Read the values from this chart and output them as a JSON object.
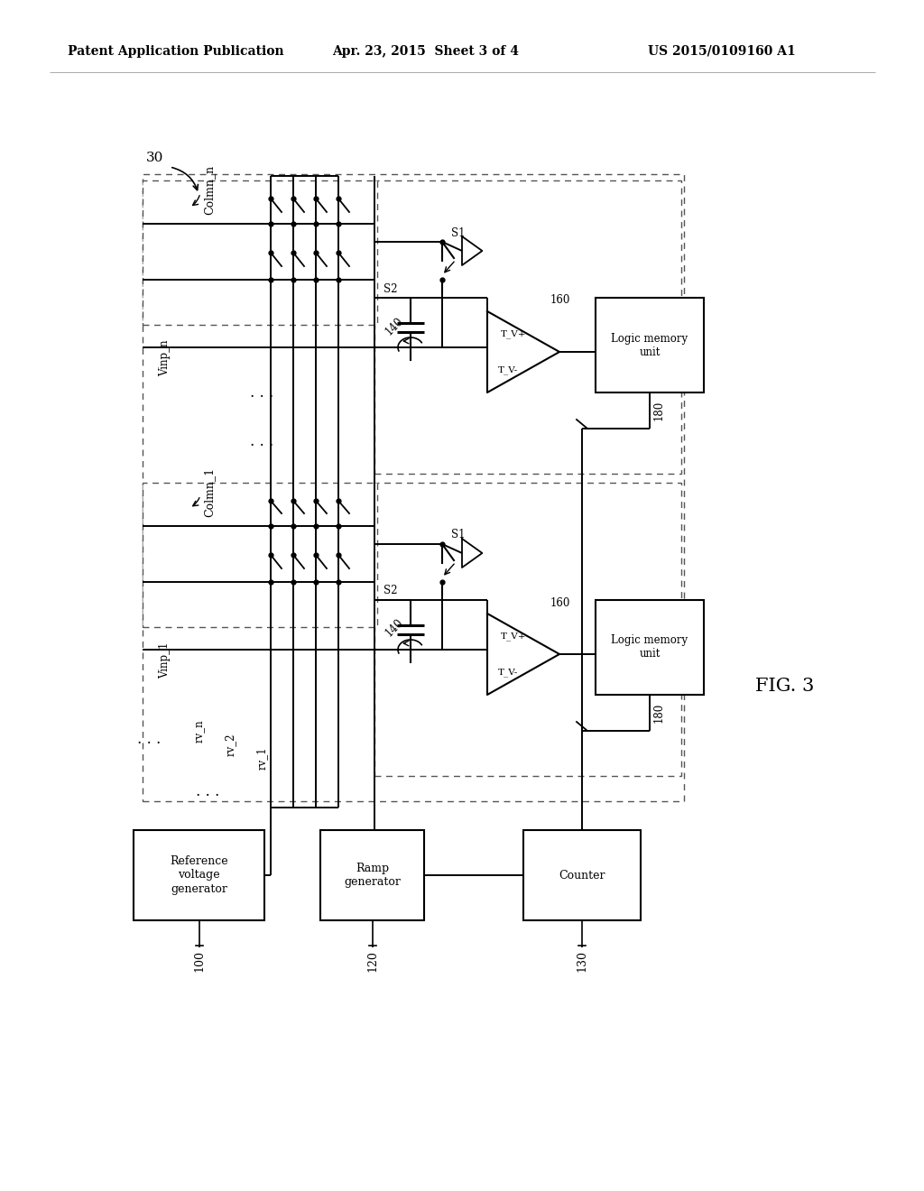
{
  "title_left": "Patent Application Publication",
  "title_mid": "Apr. 23, 2015  Sheet 3 of 4",
  "title_right": "US 2015/0109160 A1",
  "fig_label": "FIG. 3",
  "label_30": "30",
  "bg_color": "#ffffff",
  "ref_voltage_label": "Reference\nvoltage\ngenerator",
  "ramp_label": "Ramp\ngenerator",
  "counter_label": "Counter",
  "logic_memory_label": "Logic memory\nunit",
  "ref_num_100": "100",
  "ref_num_120": "120",
  "ref_num_130": "130",
  "ref_num_140": "140",
  "ref_num_160": "160",
  "ref_num_180": "180",
  "label_colmn_n": "Colmn_n",
  "label_colmn_1": "Colmn_1",
  "label_vinp_n": "Vinp_n",
  "label_vinp_1": "Vinp_1",
  "label_rv_n": "rv_n",
  "label_rv_2": "rv_2",
  "label_rv_1": "rv_1",
  "label_s1": "S1",
  "label_s2": "S2",
  "label_tv_plus": "T_V+",
  "label_tv_minus": "T_V-"
}
